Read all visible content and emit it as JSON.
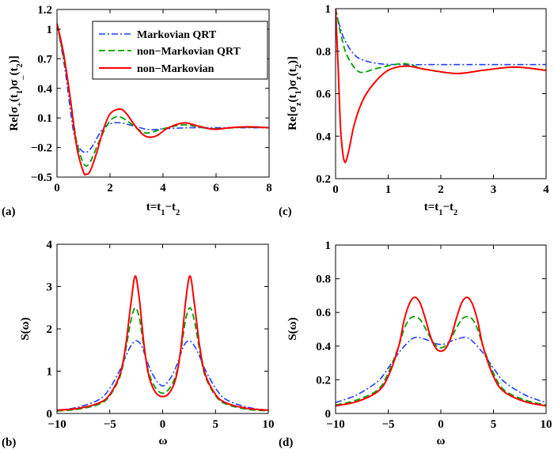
{
  "colors": {
    "markovian_qrt": "#1f3fff",
    "non_markovian_qrt": "#00a000",
    "non_markovian": "#ff0000"
  },
  "legend": {
    "placement": "top-right",
    "panel": "a",
    "entries": [
      "Markovian QRT",
      "non−Markovian QRT",
      "non−Markovian"
    ]
  },
  "chart_data": [
    {
      "id": "a",
      "type": "line",
      "panel_label": "(a)",
      "xlabel_parts": [
        {
          "t": "t=t"
        },
        {
          "sub": "1"
        },
        {
          "t": "−t"
        },
        {
          "sub": "2"
        }
      ],
      "ylabel_parts": [
        {
          "t": "Re[σ"
        },
        {
          "sub": "+"
        },
        {
          "t": "(t"
        },
        {
          "sub": "1"
        },
        {
          "t": ")σ"
        },
        {
          "sub": "_"
        },
        {
          "t": "(t"
        },
        {
          "sub": "2"
        },
        {
          "t": ")]"
        }
      ],
      "xlim": [
        0,
        8
      ],
      "ylim": [
        -0.5,
        1.2
      ],
      "xticks": [
        0,
        2,
        4,
        6,
        8
      ],
      "xtick_labels": [
        "0",
        "2",
        "4",
        "6",
        "8"
      ],
      "yticks": [
        -0.5,
        -0.2,
        0.1,
        0.4,
        0.7,
        1.0,
        1.2
      ],
      "ytick_labels": [
        "−0.5",
        "−0.2",
        "0.1",
        "0.4",
        "0.7",
        "1",
        "1.2"
      ],
      "grid": false,
      "series": [
        {
          "name": "Markovian QRT",
          "style": "dashdot",
          "x": [
            0,
            0.3,
            0.6,
            0.8,
            1.05,
            1.3,
            1.7,
            2.0,
            2.4,
            3.0,
            3.5,
            4.0,
            5.0,
            6.0,
            7.0,
            8.0
          ],
          "y": [
            1.05,
            0.6,
            0.0,
            -0.18,
            -0.25,
            -0.2,
            -0.02,
            0.04,
            0.05,
            0.01,
            -0.02,
            -0.01,
            0.0,
            0.0,
            0.0,
            0.0
          ]
        },
        {
          "name": "non−Markovian QRT",
          "style": "dashed",
          "x": [
            0,
            0.25,
            0.5,
            0.75,
            1.05,
            1.3,
            1.6,
            2.0,
            2.35,
            2.7,
            3.2,
            3.5,
            4.0,
            4.8,
            5.5,
            6.0,
            7.0,
            8.0
          ],
          "y": [
            1.05,
            0.72,
            0.3,
            -0.15,
            -0.38,
            -0.32,
            -0.13,
            0.07,
            0.11,
            0.06,
            -0.04,
            -0.05,
            -0.01,
            0.03,
            0.0,
            -0.01,
            0.005,
            0.0
          ]
        },
        {
          "name": "non−Markovian",
          "style": "solid",
          "x": [
            0,
            0.25,
            0.5,
            0.75,
            1.0,
            1.1,
            1.25,
            1.5,
            1.75,
            2.0,
            2.35,
            2.6,
            3.0,
            3.3,
            3.55,
            3.8,
            4.2,
            4.8,
            5.3,
            5.9,
            6.5,
            7.2,
            8.0
          ],
          "y": [
            1.06,
            0.75,
            0.3,
            -0.2,
            -0.45,
            -0.47,
            -0.44,
            -0.25,
            -0.02,
            0.14,
            0.19,
            0.15,
            0.0,
            -0.08,
            -0.095,
            -0.075,
            0.0,
            0.05,
            0.02,
            -0.015,
            0.0,
            0.01,
            0.0
          ]
        }
      ]
    },
    {
      "id": "c",
      "type": "line",
      "panel_label": "(c)",
      "xlabel_parts": [
        {
          "t": "t=t"
        },
        {
          "sub": "1"
        },
        {
          "t": "−t"
        },
        {
          "sub": "2"
        }
      ],
      "ylabel_parts": [
        {
          "t": "Re[σ"
        },
        {
          "sub": "z"
        },
        {
          "t": "(t"
        },
        {
          "sub": "1"
        },
        {
          "t": ")σ"
        },
        {
          "sub": "z"
        },
        {
          "t": "(t"
        },
        {
          "sub": "2"
        },
        {
          "t": ")]"
        }
      ],
      "xlim": [
        0,
        4
      ],
      "ylim": [
        0.2,
        1.0
      ],
      "xticks": [
        0,
        1,
        2,
        3,
        4
      ],
      "xtick_labels": [
        "0",
        "1",
        "2",
        "3",
        "4"
      ],
      "yticks": [
        0.2,
        0.4,
        0.6,
        0.8,
        1.0
      ],
      "ytick_labels": [
        "0.2",
        "0.4",
        "0.6",
        "0.8",
        "1"
      ],
      "grid": false,
      "series": [
        {
          "name": "Markovian QRT",
          "style": "dashdot",
          "x": [
            0,
            0.1,
            0.2,
            0.35,
            0.5,
            0.8,
            1.2,
            2.0,
            3.0,
            4.0
          ],
          "y": [
            1.0,
            0.9,
            0.84,
            0.785,
            0.76,
            0.742,
            0.737,
            0.737,
            0.737,
            0.737
          ]
        },
        {
          "name": "non−Markovian QRT",
          "style": "dashed",
          "x": [
            0,
            0.1,
            0.2,
            0.35,
            0.5,
            0.8,
            1.2,
            1.4,
            1.7,
            2.3,
            2.8,
            3.4,
            4.0
          ],
          "y": [
            1.0,
            0.88,
            0.79,
            0.725,
            0.7,
            0.72,
            0.74,
            0.738,
            0.715,
            0.695,
            0.71,
            0.725,
            0.71
          ]
        },
        {
          "name": "non−Markovian",
          "style": "solid",
          "x": [
            0,
            0.05,
            0.1,
            0.17,
            0.25,
            0.35,
            0.5,
            0.7,
            1.0,
            1.35,
            1.7,
            2.3,
            2.8,
            3.4,
            4.0
          ],
          "y": [
            1.0,
            0.72,
            0.42,
            0.28,
            0.33,
            0.45,
            0.56,
            0.64,
            0.71,
            0.73,
            0.715,
            0.695,
            0.71,
            0.725,
            0.71
          ]
        }
      ]
    },
    {
      "id": "b",
      "type": "line",
      "panel_label": "(b)",
      "xlabel_parts": [
        {
          "t": "ω"
        }
      ],
      "ylabel_parts": [
        {
          "t": "S(ω)"
        }
      ],
      "xlim": [
        -10,
        10
      ],
      "ylim": [
        0,
        4
      ],
      "xticks": [
        -10,
        -5,
        0,
        5,
        10
      ],
      "xtick_labels": [
        "−10",
        "−5",
        "0",
        "5",
        "10"
      ],
      "yticks": [
        0,
        1,
        2,
        3,
        4
      ],
      "ytick_labels": [
        "0",
        "1",
        "2",
        "3",
        "4"
      ],
      "grid": false,
      "series": [
        {
          "name": "Markovian QRT",
          "style": "dashdot",
          "x": [
            -10,
            -8,
            -6,
            -5,
            -4,
            -3.5,
            -3,
            -2.5,
            -2,
            -1.5,
            -1,
            -0.5,
            0,
            0.5,
            1,
            1.5,
            2,
            2.5,
            3,
            3.5,
            4,
            5,
            6,
            8,
            10
          ],
          "y": [
            0.07,
            0.15,
            0.33,
            0.6,
            1.05,
            1.35,
            1.6,
            1.72,
            1.6,
            1.25,
            0.95,
            0.75,
            0.65,
            0.75,
            0.95,
            1.25,
            1.6,
            1.72,
            1.6,
            1.35,
            1.05,
            0.6,
            0.33,
            0.15,
            0.07
          ]
        },
        {
          "name": "non−Markovian QRT",
          "style": "dashed",
          "x": [
            -10,
            -8,
            -6,
            -5,
            -4,
            -3.5,
            -3,
            -2.6,
            -2.2,
            -1.8,
            -1.4,
            -1,
            -0.5,
            0,
            0.5,
            1,
            1.4,
            1.8,
            2.2,
            2.6,
            3,
            3.5,
            4,
            5,
            6,
            8,
            10
          ],
          "y": [
            0.06,
            0.1,
            0.22,
            0.42,
            0.9,
            1.5,
            2.2,
            2.5,
            2.25,
            1.6,
            1.05,
            0.75,
            0.55,
            0.48,
            0.55,
            0.75,
            1.05,
            1.6,
            2.25,
            2.5,
            2.2,
            1.5,
            0.9,
            0.42,
            0.22,
            0.1,
            0.06
          ]
        },
        {
          "name": "non−Markovian",
          "style": "solid",
          "x": [
            -10,
            -8,
            -6,
            -5,
            -4,
            -3.5,
            -3,
            -2.6,
            -2.2,
            -1.8,
            -1.4,
            -1,
            -0.5,
            0,
            0.5,
            1,
            1.4,
            1.8,
            2.2,
            2.6,
            3,
            3.5,
            4,
            5,
            6,
            8,
            10
          ],
          "y": [
            0.08,
            0.12,
            0.25,
            0.45,
            0.95,
            1.6,
            2.6,
            3.25,
            2.7,
            1.7,
            1.0,
            0.65,
            0.45,
            0.4,
            0.45,
            0.65,
            1.0,
            1.7,
            2.7,
            3.25,
            2.6,
            1.6,
            0.95,
            0.45,
            0.25,
            0.12,
            0.08
          ]
        }
      ]
    },
    {
      "id": "d",
      "type": "line",
      "panel_label": "(d)",
      "xlabel_parts": [
        {
          "t": "ω"
        }
      ],
      "ylabel_parts": [
        {
          "t": "S(ω)"
        }
      ],
      "xlim": [
        -10,
        10
      ],
      "ylim": [
        0,
        1
      ],
      "xticks": [
        -10,
        -5,
        0,
        5,
        10
      ],
      "xtick_labels": [
        "−10",
        "−5",
        "0",
        "5",
        "10"
      ],
      "yticks": [
        0,
        0.2,
        0.4,
        0.6,
        0.8,
        1.0
      ],
      "ytick_labels": [
        "0",
        "0.2",
        "0.4",
        "0.6",
        "0.8",
        "1"
      ],
      "grid": false,
      "series": [
        {
          "name": "Markovian QRT",
          "style": "dashdot",
          "x": [
            -10,
            -8,
            -6,
            -5,
            -4,
            -3,
            -2.5,
            -2,
            -1,
            -0.5,
            0,
            0.5,
            1,
            2,
            2.5,
            3,
            4,
            5,
            6,
            8,
            10
          ],
          "y": [
            0.065,
            0.11,
            0.19,
            0.27,
            0.36,
            0.43,
            0.45,
            0.45,
            0.43,
            0.415,
            0.41,
            0.415,
            0.43,
            0.45,
            0.45,
            0.43,
            0.36,
            0.27,
            0.19,
            0.11,
            0.065
          ]
        },
        {
          "name": "non−Markovian QRT",
          "style": "dashed",
          "x": [
            -10,
            -8,
            -6,
            -5,
            -4,
            -3.5,
            -3,
            -2.5,
            -2,
            -1.5,
            -1,
            -0.5,
            0,
            0.5,
            1,
            1.5,
            2,
            2.5,
            3,
            3.5,
            4,
            5,
            6,
            8,
            10
          ],
          "y": [
            0.05,
            0.08,
            0.14,
            0.24,
            0.4,
            0.5,
            0.56,
            0.575,
            0.56,
            0.51,
            0.45,
            0.405,
            0.39,
            0.405,
            0.45,
            0.51,
            0.56,
            0.575,
            0.56,
            0.5,
            0.4,
            0.24,
            0.14,
            0.08,
            0.05
          ]
        },
        {
          "name": "non−Markovian",
          "style": "solid",
          "x": [
            -10,
            -8,
            -6,
            -5,
            -4,
            -3.5,
            -3,
            -2.5,
            -2,
            -1.5,
            -1,
            -0.5,
            0,
            0.5,
            1,
            1.5,
            2,
            2.5,
            3,
            3.5,
            4,
            5,
            6,
            8,
            10
          ],
          "y": [
            0.045,
            0.07,
            0.13,
            0.22,
            0.4,
            0.55,
            0.65,
            0.69,
            0.66,
            0.57,
            0.46,
            0.39,
            0.37,
            0.39,
            0.46,
            0.57,
            0.66,
            0.69,
            0.65,
            0.55,
            0.4,
            0.22,
            0.13,
            0.07,
            0.045
          ]
        }
      ]
    }
  ]
}
